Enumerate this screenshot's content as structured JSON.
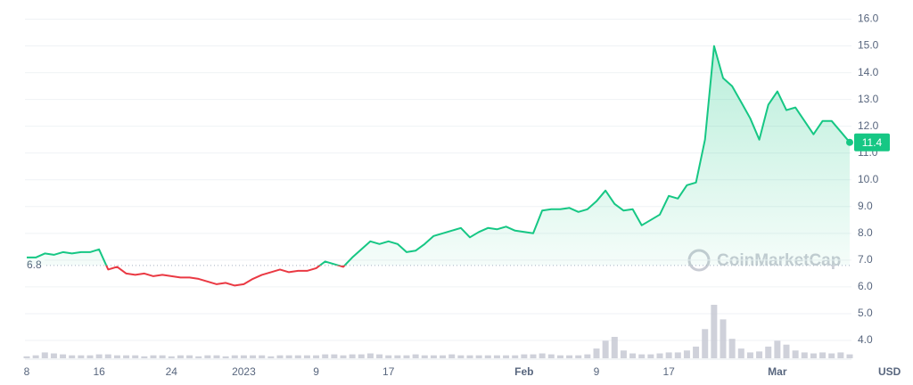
{
  "chart_data": {
    "type": "line",
    "x": [
      0,
      1,
      2,
      3,
      4,
      5,
      6,
      7,
      8,
      9,
      10,
      11,
      12,
      13,
      14,
      15,
      16,
      17,
      18,
      19,
      20,
      21,
      22,
      23,
      24,
      25,
      26,
      27,
      28,
      29,
      30,
      31,
      32,
      33,
      34,
      35,
      36,
      37,
      38,
      39,
      40,
      41,
      42,
      43,
      44,
      45,
      46,
      47,
      48,
      49,
      50,
      51,
      52,
      53,
      54,
      55,
      56,
      57,
      58,
      59,
      60,
      61,
      62,
      63,
      64,
      65,
      66,
      67,
      68,
      69,
      70,
      71,
      72,
      73,
      74,
      75,
      76,
      77,
      78,
      79,
      80,
      81,
      82,
      83,
      84,
      85,
      86,
      87,
      88,
      89,
      90,
      91
    ],
    "values": [
      7.1,
      7.1,
      7.25,
      7.2,
      7.3,
      7.25,
      7.3,
      7.3,
      7.4,
      6.65,
      6.75,
      6.5,
      6.45,
      6.5,
      6.4,
      6.45,
      6.4,
      6.35,
      6.35,
      6.3,
      6.2,
      6.1,
      6.15,
      6.05,
      6.1,
      6.3,
      6.45,
      6.55,
      6.65,
      6.55,
      6.6,
      6.6,
      6.7,
      6.95,
      6.85,
      6.75,
      7.1,
      7.4,
      7.7,
      7.6,
      7.7,
      7.6,
      7.3,
      7.35,
      7.6,
      7.9,
      8.0,
      8.1,
      8.2,
      7.85,
      8.05,
      8.2,
      8.15,
      8.25,
      8.1,
      8.05,
      8.0,
      8.85,
      8.9,
      8.9,
      8.95,
      8.8,
      8.9,
      9.2,
      9.6,
      9.1,
      8.85,
      8.9,
      8.3,
      8.5,
      8.7,
      9.4,
      9.3,
      9.8,
      9.9,
      11.5,
      15.0,
      13.8,
      13.5,
      12.9,
      12.3,
      11.5,
      12.8,
      13.3,
      12.6,
      12.7,
      12.2,
      11.7,
      12.2,
      12.2,
      11.8,
      11.4
    ],
    "color": "#16c784",
    "down_color": "#ea3943",
    "baseline": 6.8,
    "volume": {
      "color": "#c3c6d1",
      "values": [
        2,
        3,
        6,
        5,
        4,
        3,
        3,
        3,
        4,
        4,
        3,
        3,
        3,
        2,
        3,
        3,
        2,
        3,
        3,
        2,
        3,
        3,
        2,
        3,
        3,
        3,
        3,
        2,
        3,
        3,
        3,
        3,
        3,
        4,
        4,
        3,
        4,
        4,
        5,
        4,
        3,
        3,
        3,
        4,
        3,
        3,
        3,
        4,
        3,
        3,
        3,
        3,
        3,
        3,
        3,
        4,
        4,
        5,
        4,
        3,
        3,
        3,
        4,
        10,
        18,
        22,
        8,
        5,
        4,
        4,
        5,
        6,
        6,
        8,
        12,
        30,
        55,
        40,
        20,
        10,
        6,
        7,
        12,
        18,
        14,
        8,
        6,
        5,
        6,
        5,
        6,
        4
      ]
    },
    "xlim": [
      0,
      91
    ],
    "xticks": [
      {
        "value": 0,
        "label": "8"
      },
      {
        "value": 8,
        "label": "16"
      },
      {
        "value": 16,
        "label": "24"
      },
      {
        "value": 24,
        "label": "2023"
      },
      {
        "value": 32,
        "label": "9"
      },
      {
        "value": 40,
        "label": "17"
      },
      {
        "value": 55,
        "label": "Feb"
      },
      {
        "value": 63,
        "label": "9"
      },
      {
        "value": 71,
        "label": "17"
      },
      {
        "value": 83,
        "label": "Mar"
      }
    ],
    "ylim": [
      3.4,
      16.45
    ],
    "yticks": [
      {
        "value": 4,
        "label": "4.0"
      },
      {
        "value": 5,
        "label": "5.0"
      },
      {
        "value": 6,
        "label": "6.0"
      },
      {
        "value": 7,
        "label": "7.0"
      },
      {
        "value": 8,
        "label": "8.0"
      },
      {
        "value": 9,
        "label": "9.0"
      },
      {
        "value": 10,
        "label": "10.0"
      },
      {
        "value": 11,
        "label": "11.0"
      },
      {
        "value": 12,
        "label": "12.0"
      },
      {
        "value": 13,
        "label": "13.0"
      },
      {
        "value": 14,
        "label": "14.0"
      },
      {
        "value": 15,
        "label": "15.0"
      },
      {
        "value": 16,
        "label": "16.0"
      }
    ],
    "grid": true,
    "y_label": "USD",
    "watermark": "CoinMarketCap"
  }
}
